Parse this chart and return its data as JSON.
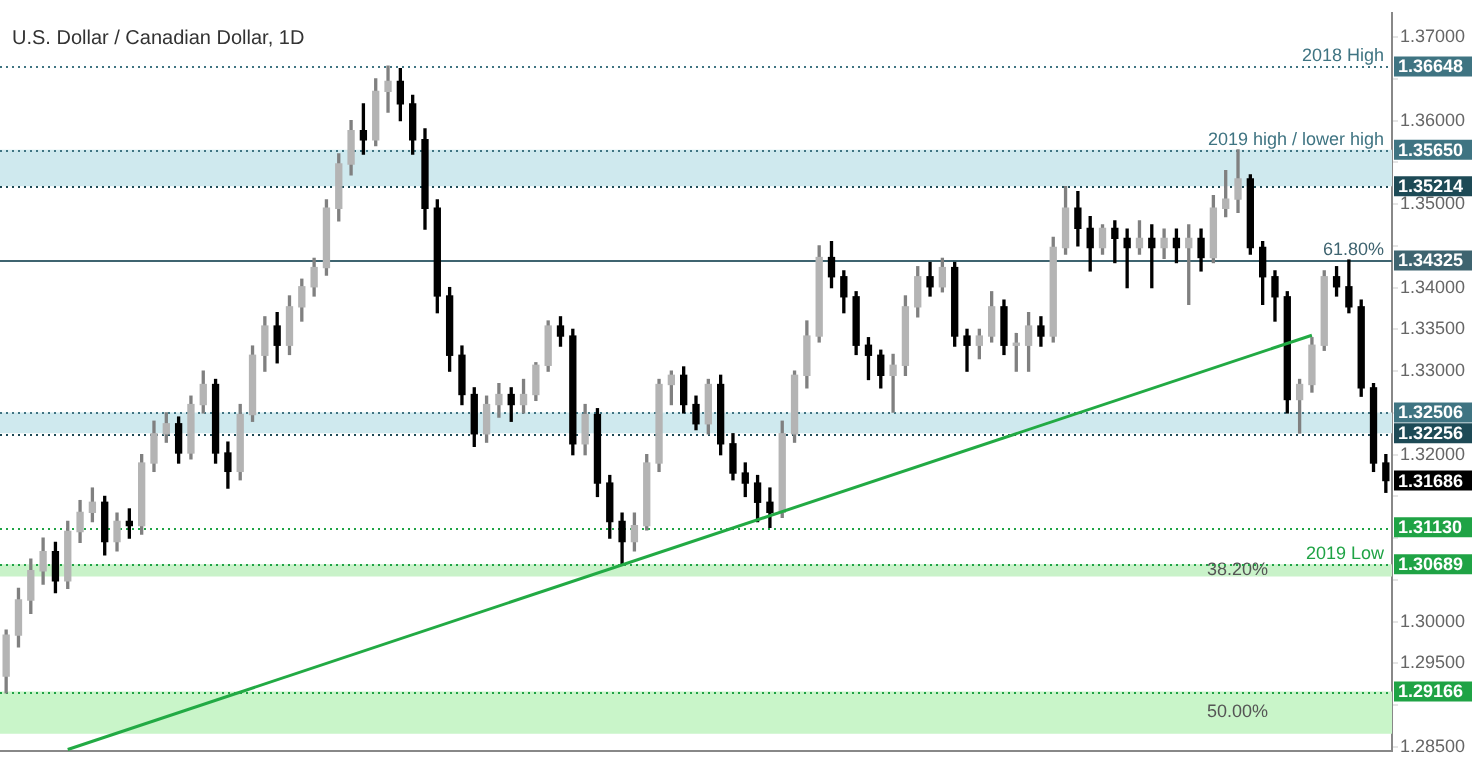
{
  "chart_data": {
    "type": "candlestick",
    "title": "U.S. Dollar / Canadian Dollar, 1D",
    "categories": [
      null,
      null,
      null,
      null,
      null,
      null,
      null,
      null,
      null,
      null,
      null,
      null,
      null,
      null,
      null,
      null,
      null,
      null,
      null,
      null,
      null,
      null,
      null,
      null,
      null,
      null,
      null,
      null,
      null,
      null,
      null,
      null,
      null,
      null,
      null,
      null,
      null,
      null,
      null,
      null,
      null,
      null,
      null,
      null,
      null,
      null,
      null,
      null,
      null,
      null,
      null,
      null,
      null,
      null,
      null,
      null,
      null,
      null,
      null,
      null,
      null,
      null,
      null,
      null,
      null,
      null,
      null,
      null,
      null,
      null,
      null,
      null,
      null,
      null,
      null,
      null,
      null,
      null,
      null,
      null,
      null,
      null,
      null,
      null,
      null,
      null,
      null,
      null,
      null,
      null,
      null,
      null,
      null,
      null,
      null,
      null,
      null,
      null,
      null,
      null,
      null,
      null,
      null,
      null,
      null,
      null,
      null,
      null,
      null,
      null,
      null,
      null,
      null
    ],
    "ohlc": [
      [
        1.2935,
        1.299,
        1.2915,
        1.2984
      ],
      [
        1.2984,
        1.304,
        1.297,
        1.3026
      ],
      [
        1.3026,
        1.3075,
        1.301,
        1.3061
      ],
      [
        1.3061,
        1.31,
        1.3045,
        1.3084
      ],
      [
        1.3084,
        1.3095,
        1.3035,
        1.3049
      ],
      [
        1.3049,
        1.312,
        1.304,
        1.3108
      ],
      [
        1.3108,
        1.3145,
        1.3095,
        1.3131
      ],
      [
        1.3131,
        1.316,
        1.312,
        1.3143
      ],
      [
        1.3143,
        1.315,
        1.308,
        1.3096
      ],
      [
        1.3096,
        1.313,
        1.3085,
        1.312
      ],
      [
        1.312,
        1.3135,
        1.31,
        1.3115
      ],
      [
        1.3115,
        1.32,
        1.3105,
        1.319
      ],
      [
        1.319,
        1.324,
        1.318,
        1.3225
      ],
      [
        1.3225,
        1.325,
        1.3215,
        1.3237
      ],
      [
        1.3237,
        1.3245,
        1.319,
        1.3202
      ],
      [
        1.3202,
        1.327,
        1.3195,
        1.326
      ],
      [
        1.326,
        1.33,
        1.325,
        1.3284
      ],
      [
        1.3284,
        1.329,
        1.319,
        1.3202
      ],
      [
        1.3202,
        1.3215,
        1.316,
        1.318
      ],
      [
        1.318,
        1.326,
        1.317,
        1.3248
      ],
      [
        1.3248,
        1.333,
        1.324,
        1.3319
      ],
      [
        1.3319,
        1.3365,
        1.33,
        1.3354
      ],
      [
        1.3354,
        1.337,
        1.331,
        1.3331
      ],
      [
        1.3331,
        1.339,
        1.332,
        1.3377
      ],
      [
        1.3377,
        1.341,
        1.336,
        1.3401
      ],
      [
        1.3401,
        1.3435,
        1.339,
        1.3424
      ],
      [
        1.3424,
        1.3505,
        1.3415,
        1.3495
      ],
      [
        1.3495,
        1.356,
        1.348,
        1.3548
      ],
      [
        1.3548,
        1.36,
        1.3535,
        1.3588
      ],
      [
        1.3588,
        1.362,
        1.356,
        1.3577
      ],
      [
        1.3577,
        1.365,
        1.357,
        1.3635
      ],
      [
        1.3635,
        1.3665,
        1.361,
        1.3647
      ],
      [
        1.3647,
        1.3662,
        1.36,
        1.362
      ],
      [
        1.362,
        1.363,
        1.356,
        1.3577
      ],
      [
        1.3577,
        1.359,
        1.347,
        1.3495
      ],
      [
        1.3495,
        1.3505,
        1.337,
        1.339
      ],
      [
        1.339,
        1.34,
        1.33,
        1.3319
      ],
      [
        1.3319,
        1.333,
        1.326,
        1.3272
      ],
      [
        1.3272,
        1.328,
        1.321,
        1.3225
      ],
      [
        1.3225,
        1.327,
        1.3215,
        1.326
      ],
      [
        1.326,
        1.3285,
        1.3245,
        1.3272
      ],
      [
        1.3272,
        1.328,
        1.324,
        1.326
      ],
      [
        1.326,
        1.329,
        1.325,
        1.3272
      ],
      [
        1.3272,
        1.331,
        1.3265,
        1.3307
      ],
      [
        1.3307,
        1.336,
        1.33,
        1.3354
      ],
      [
        1.3354,
        1.3365,
        1.333,
        1.3342
      ],
      [
        1.3342,
        1.335,
        1.32,
        1.3213
      ],
      [
        1.3213,
        1.326,
        1.32,
        1.3248
      ],
      [
        1.3248,
        1.3255,
        1.315,
        1.3166
      ],
      [
        1.3166,
        1.3175,
        1.31,
        1.312
      ],
      [
        1.312,
        1.313,
        1.3069,
        1.3096
      ],
      [
        1.3096,
        1.313,
        1.3085,
        1.3115
      ],
      [
        1.3115,
        1.32,
        1.311,
        1.319
      ],
      [
        1.319,
        1.329,
        1.318,
        1.3284
      ],
      [
        1.3284,
        1.33,
        1.326,
        1.3295
      ],
      [
        1.3295,
        1.3305,
        1.325,
        1.326
      ],
      [
        1.326,
        1.327,
        1.323,
        1.3237
      ],
      [
        1.3237,
        1.329,
        1.3225,
        1.3284
      ],
      [
        1.3284,
        1.3295,
        1.32,
        1.3213
      ],
      [
        1.3213,
        1.3225,
        1.317,
        1.3178
      ],
      [
        1.3178,
        1.319,
        1.315,
        1.3166
      ],
      [
        1.3166,
        1.3175,
        1.312,
        1.3143
      ],
      [
        1.3143,
        1.316,
        1.3113,
        1.3131
      ],
      [
        1.3131,
        1.324,
        1.3125,
        1.3225
      ],
      [
        1.3225,
        1.33,
        1.3215,
        1.3295
      ],
      [
        1.3295,
        1.336,
        1.328,
        1.3342
      ],
      [
        1.3342,
        1.345,
        1.3335,
        1.3436
      ],
      [
        1.3436,
        1.3455,
        1.34,
        1.3413
      ],
      [
        1.3413,
        1.342,
        1.337,
        1.3389
      ],
      [
        1.3389,
        1.3395,
        1.332,
        1.3331
      ],
      [
        1.3331,
        1.334,
        1.329,
        1.3319
      ],
      [
        1.3319,
        1.3325,
        1.328,
        1.3295
      ],
      [
        1.3295,
        1.332,
        1.3251,
        1.3307
      ],
      [
        1.3307,
        1.339,
        1.3295,
        1.3377
      ],
      [
        1.3377,
        1.3425,
        1.3365,
        1.3413
      ],
      [
        1.3413,
        1.343,
        1.339,
        1.3401
      ],
      [
        1.3401,
        1.3435,
        1.3395,
        1.3424
      ],
      [
        1.3424,
        1.343,
        1.333,
        1.3342
      ],
      [
        1.3342,
        1.335,
        1.33,
        1.3331
      ],
      [
        1.3331,
        1.335,
        1.3315,
        1.3342
      ],
      [
        1.3342,
        1.3395,
        1.3335,
        1.3377
      ],
      [
        1.3377,
        1.3385,
        1.332,
        1.3331
      ],
      [
        1.3331,
        1.3345,
        1.33,
        1.3331
      ],
      [
        1.3331,
        1.337,
        1.33,
        1.3354
      ],
      [
        1.3354,
        1.3365,
        1.333,
        1.3342
      ],
      [
        1.3342,
        1.346,
        1.3335,
        1.3448
      ],
      [
        1.3448,
        1.3521,
        1.344,
        1.3495
      ],
      [
        1.3495,
        1.3515,
        1.345,
        1.3471
      ],
      [
        1.3471,
        1.3485,
        1.342,
        1.3448
      ],
      [
        1.3448,
        1.3475,
        1.344,
        1.3471
      ],
      [
        1.3471,
        1.348,
        1.343,
        1.3459
      ],
      [
        1.3459,
        1.347,
        1.34,
        1.3448
      ],
      [
        1.3448,
        1.348,
        1.344,
        1.3459
      ],
      [
        1.3459,
        1.3475,
        1.34,
        1.3448
      ],
      [
        1.3448,
        1.347,
        1.3435,
        1.3459
      ],
      [
        1.3459,
        1.347,
        1.343,
        1.3448
      ],
      [
        1.3448,
        1.3475,
        1.338,
        1.3459
      ],
      [
        1.3459,
        1.347,
        1.342,
        1.3436
      ],
      [
        1.3436,
        1.351,
        1.343,
        1.3495
      ],
      [
        1.3495,
        1.354,
        1.3485,
        1.3506
      ],
      [
        1.3506,
        1.3565,
        1.349,
        1.353
      ],
      [
        1.353,
        1.3535,
        1.344,
        1.3448
      ],
      [
        1.3448,
        1.3455,
        1.338,
        1.3413
      ],
      [
        1.3413,
        1.342,
        1.336,
        1.3389
      ],
      [
        1.3389,
        1.3395,
        1.325,
        1.3266
      ],
      [
        1.3266,
        1.329,
        1.3226,
        1.3284
      ],
      [
        1.3284,
        1.334,
        1.3275,
        1.3331
      ],
      [
        1.3331,
        1.342,
        1.3325,
        1.3413
      ],
      [
        1.3413,
        1.3425,
        1.339,
        1.3401
      ],
      [
        1.3401,
        1.3433,
        1.337,
        1.3377
      ],
      [
        1.3377,
        1.3385,
        1.327,
        1.328
      ],
      [
        1.328,
        1.3285,
        1.318,
        1.319
      ],
      [
        1.319,
        1.32,
        1.3155,
        1.3169
      ]
    ],
    "series": [
      {
        "type": "line",
        "color": "#22aa44",
        "values": [
          null,
          null,
          null,
          null,
          null,
          1.2847,
          null,
          null,
          null,
          null,
          null,
          null,
          null,
          null,
          null,
          null,
          null,
          null,
          null,
          null,
          null,
          null,
          null,
          null,
          null,
          null,
          null,
          null,
          null,
          null,
          null,
          null,
          null,
          null,
          null,
          null,
          null,
          null,
          null,
          null,
          null,
          null,
          null,
          null,
          null,
          null,
          null,
          null,
          null,
          null,
          null,
          null,
          null,
          null,
          null,
          null,
          null,
          null,
          null,
          null,
          null,
          null,
          null,
          null,
          null,
          null,
          null,
          null,
          null,
          null,
          null,
          null,
          null,
          null,
          null,
          null,
          null,
          null,
          null,
          null,
          null,
          null,
          null,
          null,
          null,
          null,
          null,
          null,
          null,
          null,
          null,
          null,
          null,
          null,
          null,
          null,
          null,
          null,
          null,
          null,
          null,
          null,
          null,
          null,
          null,
          null,
          1.3343,
          null,
          null,
          null,
          null,
          null,
          null
        ]
      }
    ],
    "ylim": [
      1.2845,
      1.3729
    ],
    "yticks": [
      {
        "value": 1.285,
        "label": "1.28500"
      },
      {
        "value": 1.29,
        "label": null
      },
      {
        "value": 1.295,
        "label": "1.29500"
      },
      {
        "value": 1.3,
        "label": "1.30000"
      },
      {
        "value": 1.305,
        "label": null
      },
      {
        "value": 1.31,
        "label": null
      },
      {
        "value": 1.315,
        "label": null
      },
      {
        "value": 1.32,
        "label": "1.32000"
      },
      {
        "value": 1.325,
        "label": null
      },
      {
        "value": 1.33,
        "label": "1.33000"
      },
      {
        "value": 1.335,
        "label": "1.33500"
      },
      {
        "value": 1.34,
        "label": "1.34000"
      },
      {
        "value": 1.345,
        "label": null
      },
      {
        "value": 1.35,
        "label": "1.35000"
      },
      {
        "value": 1.355,
        "label": null
      },
      {
        "value": 1.36,
        "label": "1.36000"
      },
      {
        "value": 1.365,
        "label": null
      },
      {
        "value": 1.37,
        "label": "1.37000"
      }
    ],
    "tick_labels": "y",
    "ref_lines": [
      {
        "axis": "y",
        "value": 1.36648,
        "label": "1.36648",
        "color": "#3f7482",
        "line_style": "dotted"
      },
      {
        "axis": "y",
        "value": 1.3565,
        "label": "1.35650",
        "color": "#3f7482",
        "line_style": "dotted"
      },
      {
        "axis": "y",
        "value": 1.35214,
        "label": "1.35214",
        "color": "#1d4a56",
        "line_style": "dotted"
      },
      {
        "axis": "y",
        "value": 1.34325,
        "label": "1.34325",
        "color": "#3f6470",
        "line_style": "solid"
      },
      {
        "axis": "y",
        "value": 1.32506,
        "label": "1.32506",
        "color": "#3f7482",
        "line_style": "dotted"
      },
      {
        "axis": "y",
        "value": 1.32256,
        "label": "1.32256",
        "color": "#1d4a56",
        "line_style": "dotted"
      },
      {
        "axis": "y",
        "value": 1.3113,
        "label": "1.31130",
        "color": "#1fa345",
        "line_style": "dotted"
      },
      {
        "axis": "y",
        "value": 1.30689,
        "label": "1.30689",
        "color": "#1fa345",
        "line_style": "dotted"
      },
      {
        "axis": "y",
        "value": 1.29166,
        "label": "1.29166",
        "color": "#1fa345",
        "line_style": "dotted"
      }
    ],
    "bands": [
      {
        "axis": "y",
        "from": 1.35214,
        "to": 1.3565,
        "label": null,
        "color": "#cfe9ee"
      },
      {
        "axis": "y",
        "from": 1.32256,
        "to": 1.32506,
        "label": null,
        "color": "#cfe9ee"
      },
      {
        "axis": "y",
        "from": 1.3054,
        "to": 1.30689,
        "label": "38.20%",
        "color": "#c9f2c9"
      },
      {
        "axis": "y",
        "from": 1.2866,
        "to": 1.29166,
        "label": "50.00%",
        "color": "#c9f5c9"
      }
    ],
    "annotations": [
      {
        "text": "2018 High",
        "y": 1.36648
      },
      {
        "text": "2019 high / lower high",
        "y": 1.3565
      },
      {
        "text": "61.80%",
        "y": 1.34325
      },
      {
        "text": "2019 Low",
        "y": 1.30689
      },
      "1.31686"
    ],
    "legend": false,
    "grid": false
  }
}
